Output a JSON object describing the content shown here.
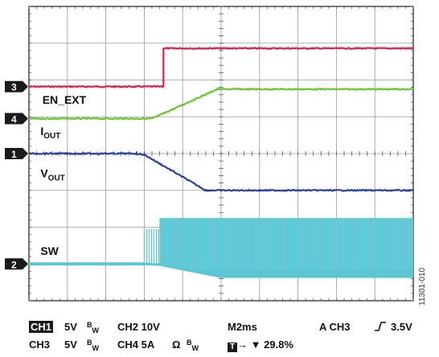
{
  "chart_data": {
    "type": "line",
    "title": "",
    "xlabel": "",
    "ylabel": "",
    "grid": true,
    "x_divisions": 10,
    "y_divisions": 8,
    "time_per_div_ms": 2,
    "trigger_time_div": 3.5,
    "series": [
      {
        "name": "EN_EXT",
        "channel": "3",
        "color": "#e0204a",
        "marker_div": 5.82,
        "x_div": [
          0,
          3.5,
          3.5,
          10
        ],
        "y_div": [
          5.82,
          5.82,
          6.86,
          6.86
        ]
      },
      {
        "name": "IOUT",
        "name_main": "I",
        "name_sub": "OUT",
        "channel": "4",
        "color": "#6cc435",
        "marker_div": 4.95,
        "x_div": [
          0,
          3.1,
          3.2,
          4.9,
          10
        ],
        "y_div": [
          4.95,
          4.95,
          4.95,
          5.75,
          5.75
        ]
      },
      {
        "name": "VOUT",
        "name_main": "V",
        "name_sub": "OUT",
        "channel": "1",
        "color": "#2b3f9c",
        "marker_div": 4.0,
        "x_div": [
          0,
          2.8,
          3.0,
          4.6,
          10
        ],
        "y_div": [
          4.0,
          4.0,
          3.97,
          3.0,
          3.0
        ]
      },
      {
        "name": "SW",
        "channel": "2",
        "color": "#5bc6d4",
        "marker_div": 1.0
      }
    ]
  },
  "status": {
    "ch1_label": "CH1",
    "ch1_scale": "5V",
    "ch2": "CH2 10V",
    "timebase": "M2ms",
    "trigger": "A  CH3",
    "trigger_level": "3.5V",
    "ch3": "CH3",
    "ch3_scale": "5V",
    "ch4": "CH4 5A",
    "ohm": "Ω",
    "bw_b": "B",
    "bw_w": "W",
    "trigger_pos": "29.8%"
  },
  "figure_id": "11301-010"
}
